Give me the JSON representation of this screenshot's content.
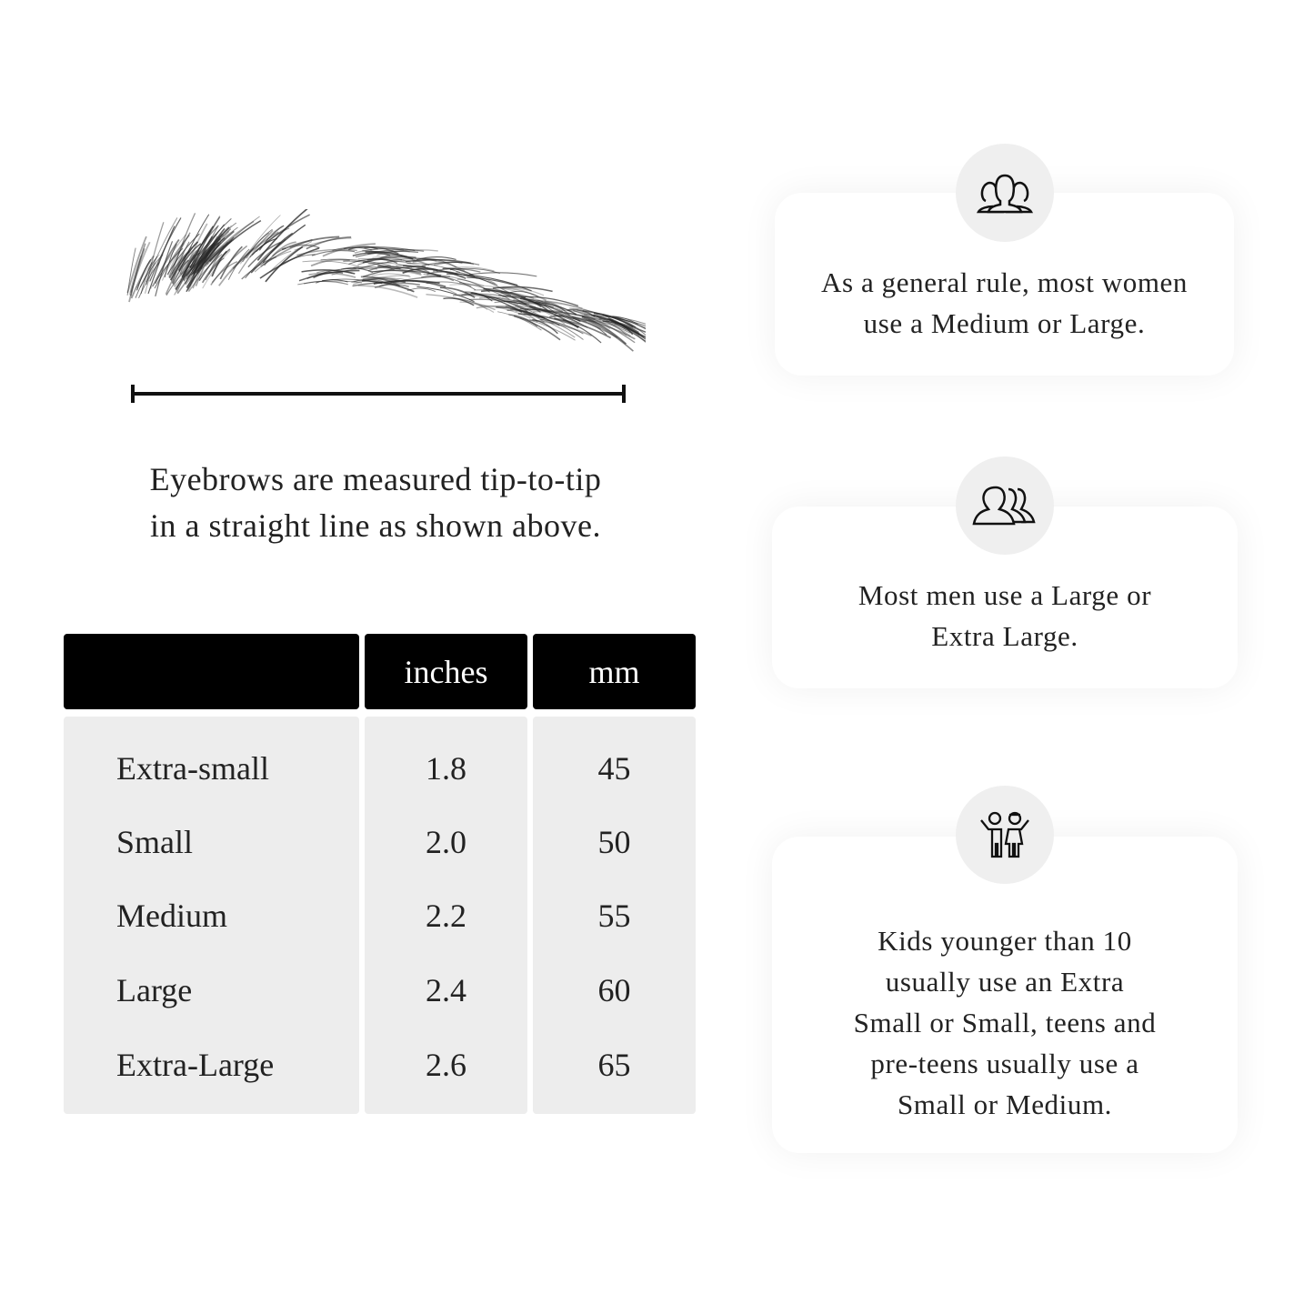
{
  "caption": {
    "line1": "Eyebrows are measured tip-to-tip",
    "line2": "in a straight line as shown above."
  },
  "table": {
    "headers": [
      "",
      "inches",
      "mm"
    ],
    "rows": [
      {
        "size": "Extra-small",
        "inches": "1.8",
        "mm": "45"
      },
      {
        "size": "Small",
        "inches": "2.0",
        "mm": "50"
      },
      {
        "size": "Medium",
        "inches": "2.2",
        "mm": "55"
      },
      {
        "size": "Large",
        "inches": "2.4",
        "mm": "60"
      },
      {
        "size": "Extra-Large",
        "inches": "2.6",
        "mm": "65"
      }
    ]
  },
  "cards": [
    {
      "icon": "women-group-icon",
      "lines": [
        "As a general rule, most women",
        "use a Medium or Large."
      ]
    },
    {
      "icon": "men-group-icon",
      "lines": [
        "Most men use a Large or",
        "Extra Large."
      ]
    },
    {
      "icon": "kids-icon",
      "lines": [
        "Kids younger than 10",
        "usually use an Extra",
        "Small or Small, teens and",
        "pre-teens usually use a",
        "Small or Medium."
      ]
    }
  ],
  "colors": {
    "header": "#000000",
    "table_body": "#ededed",
    "icon_circle": "#efefef"
  }
}
